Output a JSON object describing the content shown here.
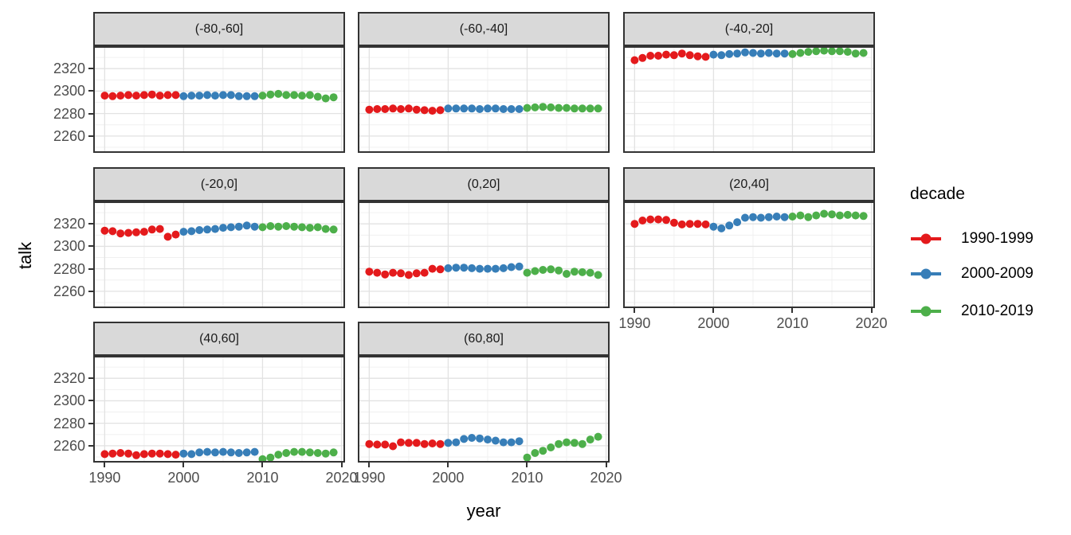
{
  "figure": {
    "background": "#FFFFFF"
  },
  "chart_data": {
    "type": "scatter",
    "title": "",
    "xlabel": "year",
    "ylabel": "talk",
    "x": [
      1990,
      1991,
      1992,
      1993,
      1994,
      1995,
      1996,
      1997,
      1998,
      1999,
      2000,
      2001,
      2002,
      2003,
      2004,
      2005,
      2006,
      2007,
      2008,
      2009,
      2010,
      2011,
      2012,
      2013,
      2014,
      2015,
      2016,
      2017,
      2018,
      2019
    ],
    "x_domain": [
      1988.55,
      2020.45
    ],
    "y_domain": [
      2245,
      2340
    ],
    "x_ticks": [
      1990,
      2000,
      2010,
      2020
    ],
    "x_minor_ticks": [
      1995,
      2005,
      2015
    ],
    "y_ticks": [
      2260,
      2280,
      2300,
      2320
    ],
    "y_minor_ticks": [
      2250,
      2270,
      2290,
      2310,
      2330
    ],
    "grid": true,
    "legend": {
      "title": "decade",
      "position": "right",
      "entries": [
        {
          "label": "1990-1999",
          "color": "#E41A1C",
          "year_start": 1990,
          "year_end": 1999
        },
        {
          "label": "2000-2009",
          "color": "#377EB8",
          "year_start": 2000,
          "year_end": 2009
        },
        {
          "label": "2010-2019",
          "color": "#4DAF4A",
          "year_start": 2010,
          "year_end": 2019
        }
      ]
    },
    "facets": [
      {
        "label": "(-80,-60]",
        "values": [
          2296,
          2295.5,
          2296,
          2296.5,
          2296,
          2296.5,
          2297,
          2296,
          2296.5,
          2296.5,
          2295.5,
          2296,
          2296,
          2296.5,
          2296,
          2296.5,
          2296.5,
          2295.5,
          2295.5,
          2295.5,
          2296,
          2297,
          2297.5,
          2296.5,
          2296.5,
          2296,
          2296.5,
          2295,
          2293.5,
          2294.5
        ]
      },
      {
        "label": "(-60,-40]",
        "values": [
          2283.5,
          2284,
          2284,
          2284.5,
          2284,
          2284.5,
          2283.5,
          2283,
          2282.5,
          2283,
          2284.5,
          2284.5,
          2284.5,
          2284.5,
          2284,
          2284.5,
          2284.5,
          2284,
          2284,
          2284,
          2285,
          2285.5,
          2286,
          2285.5,
          2285,
          2285,
          2284.5,
          2284.5,
          2284.5,
          2284.5
        ]
      },
      {
        "label": "(-40,-20]",
        "values": [
          2327.5,
          2329.5,
          2331.5,
          2331.5,
          2332.5,
          2332,
          2333.5,
          2332,
          2331,
          2330.5,
          2332.5,
          2332,
          2333,
          2333.5,
          2334.5,
          2334,
          2333.5,
          2334,
          2333.5,
          2333.5,
          2333,
          2334,
          2335,
          2335.5,
          2336,
          2335.5,
          2335.5,
          2335,
          2333.5,
          2334
        ]
      },
      {
        "label": "(-20,0]",
        "values": [
          2314,
          2313.5,
          2311.5,
          2312,
          2312.5,
          2313,
          2315,
          2315.5,
          2308.5,
          2310.5,
          2313,
          2313.5,
          2314.5,
          2315,
          2315.5,
          2316.5,
          2317,
          2317.5,
          2318.5,
          2317.5,
          2317,
          2318,
          2317.5,
          2318,
          2317.5,
          2317,
          2316.5,
          2317,
          2315.5,
          2315
        ]
      },
      {
        "label": "(0,20]",
        "values": [
          2277.5,
          2276.5,
          2275,
          2276.5,
          2276,
          2274.5,
          2276,
          2276.5,
          2280,
          2279.5,
          2280.5,
          2281,
          2281,
          2280.5,
          2280,
          2280,
          2280,
          2280.5,
          2281.5,
          2282,
          2276.5,
          2278,
          2279,
          2279.5,
          2278.5,
          2275.5,
          2277.5,
          2277,
          2276.5,
          2274.5
        ]
      },
      {
        "label": "(20,40]",
        "values": [
          2320,
          2323,
          2324,
          2324,
          2323.5,
          2321,
          2319.5,
          2320,
          2320,
          2319.5,
          2317.5,
          2316,
          2318.5,
          2321.5,
          2325.5,
          2326,
          2325.5,
          2326,
          2326.5,
          2326,
          2326.5,
          2327.5,
          2326,
          2327.5,
          2329,
          2328.5,
          2327.5,
          2328,
          2327.5,
          2327
        ]
      },
      {
        "label": "(40,60]",
        "values": [
          2252.5,
          2253,
          2253.5,
          2253,
          2251.5,
          2252.5,
          2253,
          2253,
          2252.5,
          2252,
          2253,
          2252.5,
          2254,
          2254.5,
          2254,
          2254.5,
          2254,
          2253.5,
          2254,
          2254.5,
          2248,
          2249.5,
          2252,
          2253.5,
          2254.5,
          2254.5,
          2254,
          2253.5,
          2253,
          2254
        ]
      },
      {
        "label": "(60,80]",
        "values": [
          2261.5,
          2261,
          2261,
          2259.5,
          2263,
          2262.5,
          2262.5,
          2261.5,
          2262,
          2261.5,
          2262.5,
          2263,
          2266,
          2267,
          2266.5,
          2265.5,
          2264.5,
          2263,
          2263,
          2264,
          2249.5,
          2253.5,
          2255.5,
          2258.5,
          2261.5,
          2263,
          2262.5,
          2261.5,
          2265.5,
          2268
        ]
      }
    ]
  },
  "colors": {
    "strip_background": "#D9D9D9",
    "panel_border": "#333333",
    "grid_major": "#E2E2E2",
    "grid_minor": "#F0F0F0",
    "axis_text": "#4D4D4D",
    "text": "#000000",
    "decade_1990_1999": "#E41A1C",
    "decade_2000_2009": "#377EB8",
    "decade_2010_2019": "#4DAF4A"
  }
}
